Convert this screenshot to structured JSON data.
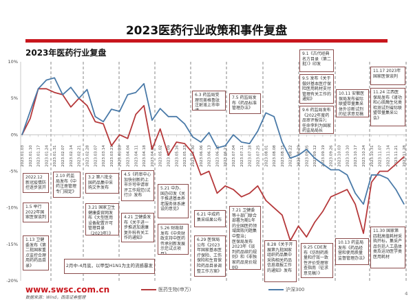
{
  "header": {
    "title": "2023医药行业政策和事件复盘",
    "subtitle": "2023年医药行业复盘"
  },
  "colors": {
    "accent": "#c8161d",
    "series_pharma": "#b5383a",
    "series_hs300": "#4a7aa8",
    "box_border": "#8a4a4a"
  },
  "chart_data": {
    "type": "line",
    "title": "2023年医药行业复盘",
    "ylim": [
      -20,
      10
    ],
    "yticks": [
      "10%",
      "5%",
      "0%",
      "-5%",
      "-10%",
      "-15%",
      "-20%"
    ],
    "ytick_values": [
      10,
      5,
      0,
      -5,
      -10,
      -15,
      -20
    ],
    "grid": false,
    "legend": "bottom",
    "x": [
      "2023.01.03",
      "2023.01.10",
      "2023.01.17",
      "2023.01.24",
      "2023.01.31",
      "2023.02.07",
      "2023.02.14",
      "2023.02.21",
      "2023.02.28",
      "2023.03.07",
      "2023.03.14",
      "2023.03.21",
      "2023.03.28",
      "2023.04.04",
      "2023.04.11",
      "2023.04.18",
      "2023.04.25",
      "2023.05.02",
      "2023.05.09",
      "2023.05.16",
      "2023.05.23",
      "2023.05.30",
      "2023.06.06",
      "2023.06.13",
      "2023.06.20",
      "2023.06.27",
      "2023.07.04",
      "2023.07.11",
      "2023.07.18",
      "2023.07.25",
      "2023.08.01",
      "2023.08.08",
      "2023.08.15",
      "2023.08.22",
      "2023.08.29",
      "2023.09.05",
      "2023.09.12",
      "2023.09.19",
      "2023.09.26",
      "2023.10.03",
      "2023.10.10",
      "2023.10.17",
      "2023.10.24",
      "2023.10.31",
      "2023.11.07",
      "2023.11.14",
      "2023.11.21",
      "2023.11.28"
    ],
    "series": [
      {
        "name": "医药生物(申万)",
        "color": "#b5383a",
        "values": [
          0,
          2.2,
          6.3,
          6.3,
          5.8,
          5.5,
          3.8,
          5,
          4,
          1.8,
          1.5,
          -1.5,
          0,
          -0.5,
          2.8,
          4,
          -2,
          0.8,
          -2.8,
          -1,
          -1.2,
          -2.5,
          -5.5,
          -5,
          -8,
          -7,
          -7.5,
          -8.5,
          -8,
          -7,
          -9,
          -10,
          -11,
          -14.5,
          -12.5,
          -14,
          -12,
          -10.5,
          -8.5,
          -8,
          -7.5,
          -9.5,
          -13.5,
          -6.5,
          -5,
          -5,
          -4,
          -3
        ]
      },
      {
        "name": "沪深300",
        "color": "#4a7aa8",
        "values": [
          0,
          3.2,
          6.3,
          7.5,
          7.8,
          5.5,
          6.5,
          5,
          6.2,
          2.5,
          1.8,
          3.5,
          3.2,
          5.5,
          5.8,
          7,
          2,
          3.6,
          2.5,
          2.5,
          1.5,
          -0.3,
          -1,
          0.3,
          -1.8,
          -1.5,
          0,
          -1,
          -1.2,
          0.5,
          3,
          2.5,
          -1,
          -3.2,
          -2.8,
          -2,
          -3.2,
          -4,
          -4.8,
          -4.8,
          -5.5,
          -8,
          -9.5,
          -5.5,
          -5.5,
          -6,
          -7.5,
          -9.5
        ]
      }
    ]
  },
  "annotations": [
    "2022.12 新冠疫情防控逐步放开",
    "1.5 举行2022年国家医保谈判",
    "1.13 卫健委发布《第二批国家重点监控合理用药药品目录》",
    "2.10 药监局发布《中药注册管理专门规定》",
    "3.2 第八批全国药品集中采购文件发布",
    "3.21 国家卫生健康委官网发布《大型医用设备配置许可管理目录（2023年）》",
    "4.5《药审中心加快创新药上市许可申请审评工作规范(试行)》发布",
    "4.21 卫健委发布《关于进一步推进加速康复外科有关工作的通知》",
    "5.21 中办、国办印发《关于推进基本养老服务体系建设的意见》",
    "5.26 财政部发布《中央财政支持中医药传承创新发展示范试点项目》",
    "6.3 药监局受理司美格鲁肽注射液上市申请",
    "6.21 中成药集采结果公布",
    "6.29 医保局公布《2023年国家基本医疗保险、工伤保险和生育保险药品目录调整工作方案》",
    "7.5 药监局发布《药品标准管理办法》",
    "7.21 卫健委等十部门联合部署为期1年的全国医药领域腐败问题集中整治；\n医保局发布2023年《谈判药品续约规则》和《非独家药品竞价规则》",
    "8.28《关于开展第九批国家组织药品集中采购相关药品信息填报工作的通知》发布",
    "9.1《古代经典名方目录（第二批）》印发",
    "9.5 发布《关于做好基本医疗保险医用耗材支付管理有关工作的通知》",
    "9.6 药监局发布《2022年度药品审评报告》；任命李利为国家药监局局长",
    "9.25 CDE发布《仿制药质量和疗效一致性评价受理审查指南（征求意见稿）》",
    "10.11 安徽医保局发布省际联盟带量集采体外诊断试剂的征求意见稿",
    "10.13 药监局发布《药品经营和使用质量监督管理办法》",
    "11.17 2023年国家医保谈判",
    "11.24 江西医保局发布《肾功和心肌酶生化类检测试剂省际联盟带量集采公告》",
    "11.30 国家第四批高值耗材采购开标，集采产品包括人工晶体类及运动医学类医用耗材"
  ],
  "flu_note": "2月中-4月底，以甲型H1N1为主的流感暴发",
  "footer": {
    "site": "www.swsc.com.cn",
    "source": "数据来源：Wind，西南证券整理",
    "legend_pharma": "医药生物(申万)",
    "legend_hs300": "沪深300",
    "page": "4"
  }
}
